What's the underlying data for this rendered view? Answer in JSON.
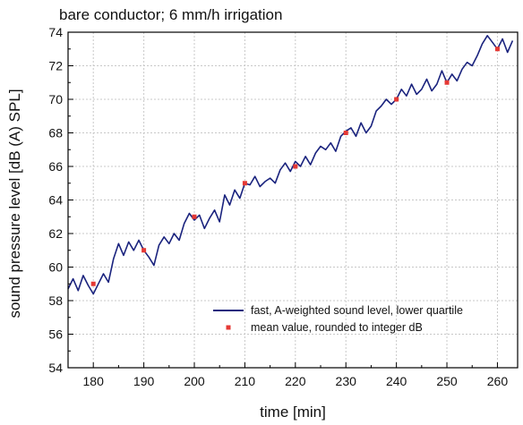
{
  "chart_data": {
    "type": "line",
    "title": "bare conductor; 6 mm/h irrigation",
    "xlabel": "time [min]",
    "ylabel": "sound pressure level [dB (A) SPL]",
    "xlim": [
      175,
      264
    ],
    "ylim": [
      54,
      74
    ],
    "xticks": [
      180,
      190,
      200,
      210,
      220,
      230,
      240,
      250,
      260
    ],
    "yticks": [
      54,
      56,
      58,
      60,
      62,
      64,
      66,
      68,
      70,
      72,
      74
    ],
    "grid": true,
    "legend_position": "lower-right",
    "colors": {
      "line": "#1a237e",
      "markers": "#e53935",
      "grid": "#c8c8c8"
    },
    "series": [
      {
        "name": "fast, A-weighted sound level, lower quartile",
        "kind": "line",
        "x": [
          175,
          176,
          177,
          178,
          179,
          180,
          181,
          182,
          183,
          184,
          185,
          186,
          187,
          188,
          189,
          190,
          191,
          192,
          193,
          194,
          195,
          196,
          197,
          198,
          199,
          200,
          201,
          202,
          203,
          204,
          205,
          206,
          207,
          208,
          209,
          210,
          211,
          212,
          213,
          214,
          215,
          216,
          217,
          218,
          219,
          220,
          221,
          222,
          223,
          224,
          225,
          226,
          227,
          228,
          229,
          230,
          231,
          232,
          233,
          234,
          235,
          236,
          237,
          238,
          239,
          240,
          241,
          242,
          243,
          244,
          245,
          246,
          247,
          248,
          249,
          250,
          251,
          252,
          253,
          254,
          255,
          256,
          257,
          258,
          259,
          260,
          261,
          262,
          263
        ],
        "y": [
          58.7,
          59.3,
          58.6,
          59.5,
          58.9,
          58.4,
          59.0,
          59.6,
          59.1,
          60.5,
          61.4,
          60.7,
          61.5,
          61.0,
          61.6,
          61.0,
          60.6,
          60.1,
          61.3,
          61.8,
          61.4,
          62.0,
          61.6,
          62.6,
          63.2,
          62.8,
          63.1,
          62.3,
          62.9,
          63.4,
          62.7,
          64.3,
          63.7,
          64.6,
          64.1,
          65.0,
          64.9,
          65.4,
          64.8,
          65.1,
          65.3,
          65.0,
          65.8,
          66.2,
          65.7,
          66.3,
          66.0,
          66.6,
          66.1,
          66.8,
          67.2,
          67.0,
          67.4,
          66.9,
          67.8,
          68.1,
          68.3,
          67.8,
          68.6,
          68.0,
          68.4,
          69.3,
          69.6,
          70.0,
          69.7,
          70.0,
          70.6,
          70.2,
          70.9,
          70.3,
          70.6,
          71.2,
          70.5,
          70.9,
          71.7,
          71.0,
          71.5,
          71.1,
          71.8,
          72.2,
          72.0,
          72.6,
          73.3,
          73.8,
          73.4,
          73.0,
          73.6,
          72.8,
          73.5
        ]
      },
      {
        "name": "mean value, rounded to integer dB",
        "kind": "scatter",
        "x": [
          180,
          190,
          200,
          210,
          220,
          230,
          240,
          250,
          260
        ],
        "y": [
          59,
          61,
          63,
          65,
          66,
          68,
          70,
          71,
          73
        ]
      }
    ]
  }
}
